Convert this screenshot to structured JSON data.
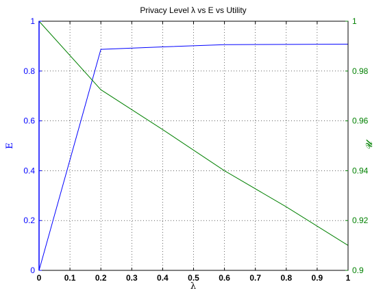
{
  "chart_data": {
    "type": "line",
    "title": "Privacy Level λ vs E vs Utility",
    "xlabel": "λ",
    "ylabel_left": "E",
    "ylabel_right": "𝓤",
    "xlim": [
      0,
      1
    ],
    "ylim_left": [
      0,
      1
    ],
    "ylim_right": [
      0.9,
      1
    ],
    "x_ticks": [
      "0",
      "0.1",
      "0.2",
      "0.3",
      "0.4",
      "0.5",
      "0.6",
      "0.7",
      "0.8",
      "0.9",
      "1"
    ],
    "y_left_ticks": [
      "0",
      "0.2",
      "0.4",
      "0.6",
      "0.8",
      "1"
    ],
    "y_right_ticks": [
      "0.9",
      "0.92",
      "0.94",
      "0.96",
      "0.98",
      "1"
    ],
    "grid": true,
    "series": [
      {
        "axis": "left",
        "color": "#0000ff",
        "x": [
          0,
          0,
          0.2,
          0.4,
          0.6,
          0.8,
          1.0
        ],
        "y": [
          1,
          0,
          0.887,
          0.897,
          0.906,
          0.907,
          0.908
        ]
      },
      {
        "axis": "right",
        "color": "#008000",
        "x": [
          0,
          0.2,
          0.4,
          0.6,
          0.8,
          1.0
        ],
        "y": [
          1.0,
          0.9725,
          0.9565,
          0.94,
          0.9255,
          0.91
        ]
      }
    ]
  }
}
